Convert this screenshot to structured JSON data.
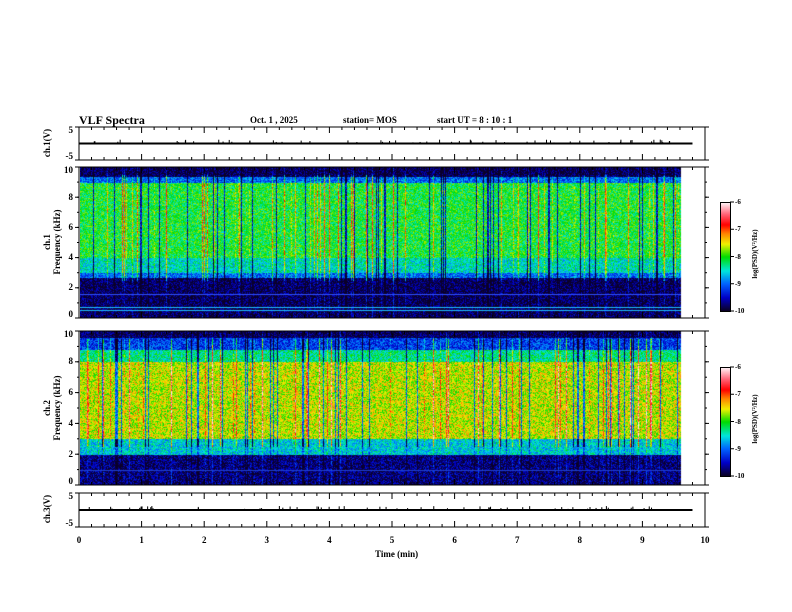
{
  "header": {
    "title": "VLF Spectra",
    "date": "Oct. 1 , 2025",
    "station": "station= MOS",
    "start_ut": "start  UT =   8 : 10 : 1"
  },
  "chart_data": [
    {
      "type": "line",
      "name": "ch1-voltage",
      "ylabel": "ch.1(V)",
      "ylim": [
        -5,
        5
      ],
      "yticks": [
        "5",
        "-5"
      ],
      "trace_level": 0,
      "xlim": [
        0,
        10
      ],
      "data_end_min": 9.8
    },
    {
      "type": "heatmap",
      "name": "ch1-spectrogram",
      "ylabel_line1": "ch.1",
      "ylabel_line2": "Frequency  (kHz)",
      "ylim": [
        0,
        10
      ],
      "yticks": [
        "0",
        "2",
        "4",
        "6",
        "8",
        "10"
      ],
      "colorbar": {
        "label": "log(PSD)(V²/Hz)",
        "range": [
          -10,
          -6
        ],
        "ticks": [
          "-6",
          "-7",
          "-8",
          "-9",
          "-10"
        ]
      }
    },
    {
      "type": "heatmap",
      "name": "ch2-spectrogram",
      "ylabel_line1": "ch.2",
      "ylabel_line2": "Frequency  (kHz)",
      "ylim": [
        0,
        10
      ],
      "yticks": [
        "0",
        "2",
        "4",
        "6",
        "8",
        "10"
      ],
      "colorbar": {
        "label": "log(PSD)(V²/Hz)",
        "range": [
          -10,
          -6
        ],
        "ticks": [
          "-6",
          "-7",
          "-8",
          "-9",
          "-10"
        ]
      }
    },
    {
      "type": "line",
      "name": "ch3-voltage",
      "ylabel": "ch.3(V)",
      "ylim": [
        -5,
        5
      ],
      "yticks": [
        "5",
        "-5"
      ],
      "trace_level": 0,
      "xlim": [
        0,
        10
      ]
    }
  ],
  "xaxis": {
    "label": "Time  (min)",
    "ticks": [
      "0",
      "1",
      "2",
      "3",
      "4",
      "5",
      "6",
      "7",
      "8",
      "9",
      "10"
    ]
  }
}
